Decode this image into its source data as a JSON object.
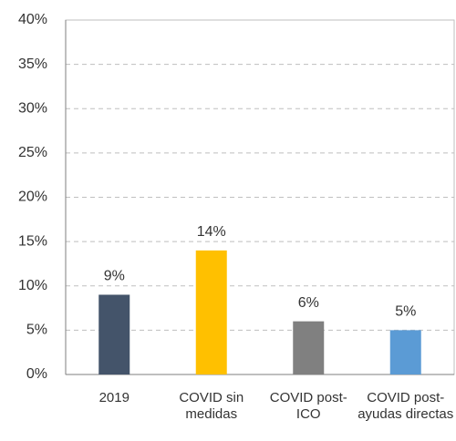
{
  "chart_data": {
    "type": "bar",
    "categories": [
      "2019",
      "COVID sin medidas",
      "COVID post-ICO",
      "COVID post-ayudas directas"
    ],
    "values": [
      9,
      14,
      6,
      5
    ],
    "value_labels": [
      "9%",
      "14%",
      "6%",
      "5%"
    ],
    "colors": [
      "#44546a",
      "#ffc000",
      "#808080",
      "#5b9bd5"
    ],
    "ylim": [
      0,
      40
    ],
    "yticks": [
      {
        "value": 0,
        "label": "0%"
      },
      {
        "value": 5,
        "label": "5%"
      },
      {
        "value": 10,
        "label": "10%"
      },
      {
        "value": 15,
        "label": "15%"
      },
      {
        "value": 20,
        "label": "20%"
      },
      {
        "value": 25,
        "label": "25%"
      },
      {
        "value": 30,
        "label": "30%"
      },
      {
        "value": 35,
        "label": "35%"
      },
      {
        "value": 40,
        "label": "40%"
      }
    ],
    "grid": true
  }
}
